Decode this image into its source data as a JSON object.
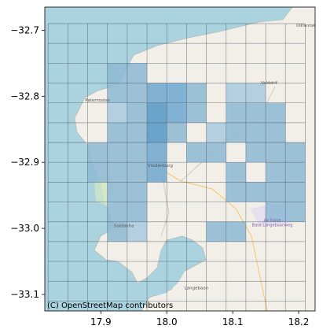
{
  "chart_data": {
    "type": "heatmap",
    "title": "",
    "xlabel": "",
    "ylabel": "",
    "xlim": [
      17.815,
      18.225
    ],
    "ylim": [
      -33.125,
      -32.665
    ],
    "x_ticks": [
      17.9,
      18.0,
      18.1,
      18.2
    ],
    "y_ticks": [
      -32.7,
      -32.8,
      -32.9,
      -33.0,
      -33.1
    ],
    "x_tick_labels": [
      "17.9",
      "18.0",
      "18.1",
      "18.2"
    ],
    "y_tick_labels": [
      "−32.7",
      "−32.8",
      "−32.9",
      "−33.0",
      "−33.1"
    ],
    "grid": {
      "lon_start": 17.82,
      "lon_step": 0.03,
      "n_cols": 13,
      "lat_start": -32.69,
      "lat_step": 0.03,
      "n_rows": 15
    },
    "shaded_cells": [
      {
        "col": 3,
        "row": 2,
        "level": 2
      },
      {
        "col": 4,
        "row": 2,
        "level": 2
      },
      {
        "col": 5,
        "row": 3,
        "level": 3
      },
      {
        "col": 6,
        "row": 3,
        "level": 3
      },
      {
        "col": 7,
        "row": 3,
        "level": 2
      },
      {
        "col": 3,
        "row": 3,
        "level": 2
      },
      {
        "col": 4,
        "row": 3,
        "level": 2
      },
      {
        "col": 4,
        "row": 4,
        "level": 2
      },
      {
        "col": 5,
        "row": 4,
        "level": 4
      },
      {
        "col": 6,
        "row": 4,
        "level": 3
      },
      {
        "col": 7,
        "row": 4,
        "level": 2
      },
      {
        "col": 3,
        "row": 4,
        "level": 1
      },
      {
        "col": 9,
        "row": 4,
        "level": 2
      },
      {
        "col": 10,
        "row": 4,
        "level": 2
      },
      {
        "col": 9,
        "row": 3,
        "level": 1
      },
      {
        "col": 10,
        "row": 3,
        "level": 1
      },
      {
        "col": 11,
        "row": 4,
        "level": 2
      },
      {
        "col": 3,
        "row": 5,
        "level": 2
      },
      {
        "col": 4,
        "row": 5,
        "level": 2
      },
      {
        "col": 5,
        "row": 5,
        "level": 4
      },
      {
        "col": 6,
        "row": 5,
        "level": 2
      },
      {
        "col": 8,
        "row": 5,
        "level": 1
      },
      {
        "col": 9,
        "row": 5,
        "level": 2
      },
      {
        "col": 10,
        "row": 5,
        "level": 2
      },
      {
        "col": 11,
        "row": 5,
        "level": 2
      },
      {
        "col": 2,
        "row": 6,
        "level": 2
      },
      {
        "col": 3,
        "row": 6,
        "level": 2
      },
      {
        "col": 4,
        "row": 6,
        "level": 2
      },
      {
        "col": 5,
        "row": 6,
        "level": 3
      },
      {
        "col": 7,
        "row": 6,
        "level": 2
      },
      {
        "col": 8,
        "row": 6,
        "level": 2
      },
      {
        "col": 10,
        "row": 6,
        "level": 2
      },
      {
        "col": 11,
        "row": 6,
        "level": 2
      },
      {
        "col": 12,
        "row": 6,
        "level": 2
      },
      {
        "col": 2,
        "row": 7,
        "level": 2
      },
      {
        "col": 3,
        "row": 7,
        "level": 2
      },
      {
        "col": 4,
        "row": 7,
        "level": 2
      },
      {
        "col": 5,
        "row": 7,
        "level": 3
      },
      {
        "col": 9,
        "row": 7,
        "level": 2
      },
      {
        "col": 11,
        "row": 7,
        "level": 2
      },
      {
        "col": 12,
        "row": 7,
        "level": 2
      },
      {
        "col": 3,
        "row": 8,
        "level": 2
      },
      {
        "col": 4,
        "row": 8,
        "level": 2
      },
      {
        "col": 9,
        "row": 8,
        "level": 2
      },
      {
        "col": 10,
        "row": 8,
        "level": 2
      },
      {
        "col": 11,
        "row": 8,
        "level": 2
      },
      {
        "col": 12,
        "row": 8,
        "level": 2
      },
      {
        "col": 3,
        "row": 9,
        "level": 2
      },
      {
        "col": 4,
        "row": 9,
        "level": 2
      },
      {
        "col": 11,
        "row": 9,
        "level": 2
      },
      {
        "col": 12,
        "row": 9,
        "level": 2
      },
      {
        "col": 3,
        "row": 10,
        "level": 2
      },
      {
        "col": 4,
        "row": 10,
        "level": 1
      },
      {
        "col": 8,
        "row": 10,
        "level": 2
      },
      {
        "col": 9,
        "row": 10,
        "level": 2
      }
    ],
    "level_colors": {
      "1": "#a9c9dd",
      "2": "#8db8d4",
      "3": "#6fa7cf",
      "4": "#5497c4"
    },
    "place_labels": [
      {
        "text": "Paternoster",
        "lon": 17.895,
        "lat": -32.808
      },
      {
        "text": "Vredenburg",
        "lon": 17.99,
        "lat": -32.907
      },
      {
        "text": "Saldanha",
        "lon": 17.935,
        "lat": -32.998
      },
      {
        "text": "Langebaan",
        "lon": 18.045,
        "lat": -33.092
      },
      {
        "text": "Velddrif",
        "lon": 18.155,
        "lat": -32.782
      },
      {
        "text": "Olifantskop",
        "lon": 18.215,
        "lat": -32.695
      }
    ],
    "base_label": {
      "line1": "Air Force",
      "line2": "Base Langebaanweg",
      "lon": 18.16,
      "lat": -32.99
    },
    "attribution": "(C) OpenStreetMap contributors",
    "colors": {
      "sea": "#aad3df",
      "land": "#f2efe9",
      "grid_line": "#3b4b58",
      "grid_stroke_opacity": "0.55"
    }
  }
}
